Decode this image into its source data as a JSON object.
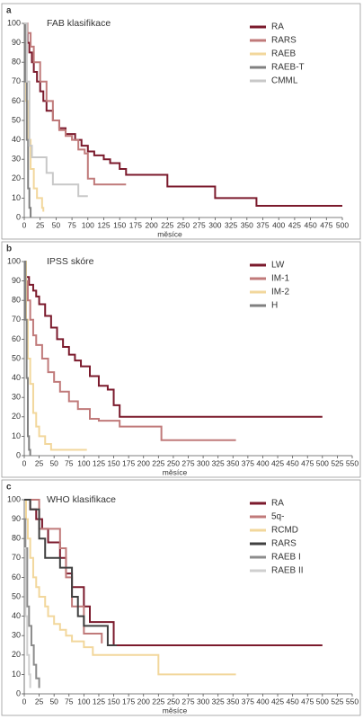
{
  "chart_data": [
    {
      "type": "line",
      "panel": "a",
      "title": "FAB klasifikace",
      "x_label": "měsíce",
      "step": true,
      "xlim": [
        0,
        500
      ],
      "ylim": [
        0,
        100
      ],
      "xticks": [
        0,
        25,
        50,
        75,
        100,
        125,
        150,
        175,
        200,
        225,
        250,
        275,
        300,
        325,
        350,
        375,
        400,
        425,
        450,
        475,
        500
      ],
      "yticks": [
        0,
        10,
        20,
        30,
        40,
        50,
        60,
        70,
        80,
        90,
        100
      ],
      "series": [
        {
          "name": "RA",
          "color": "#7b1a2c",
          "x": [
            0,
            3,
            5,
            8,
            12,
            15,
            20,
            25,
            30,
            35,
            45,
            55,
            65,
            80,
            90,
            100,
            110,
            125,
            135,
            150,
            160,
            225,
            300,
            365,
            500
          ],
          "values": [
            100,
            95,
            90,
            85,
            80,
            75,
            70,
            65,
            60,
            55,
            50,
            46,
            43,
            40,
            37,
            34,
            32,
            30,
            28,
            25,
            22,
            16,
            10,
            6,
            6
          ]
        },
        {
          "name": "RARS",
          "color": "#c07a7a",
          "x": [
            0,
            5,
            10,
            15,
            25,
            35,
            45,
            55,
            65,
            75,
            85,
            95,
            100,
            110,
            160
          ],
          "values": [
            100,
            95,
            88,
            80,
            70,
            60,
            50,
            45,
            42,
            40,
            35,
            33,
            20,
            17,
            17
          ]
        },
        {
          "name": "RAEB",
          "color": "#f2d79c",
          "x": [
            0,
            3,
            6,
            10,
            15,
            20,
            28,
            30
          ],
          "values": [
            100,
            60,
            40,
            25,
            15,
            10,
            5,
            3
          ]
        },
        {
          "name": "RAEB-T",
          "color": "#808080",
          "x": [
            0,
            2,
            4,
            6,
            8,
            10
          ],
          "values": [
            100,
            70,
            40,
            15,
            5,
            0
          ]
        },
        {
          "name": "CMML",
          "color": "#c8c8c8",
          "x": [
            0,
            4,
            8,
            12,
            35,
            45,
            75,
            85,
            100
          ],
          "values": [
            100,
            70,
            37,
            31,
            23,
            17,
            17,
            11,
            11
          ]
        }
      ]
    },
    {
      "type": "line",
      "panel": "b",
      "title": "IPSS skóre",
      "x_label": "měsíce",
      "step": true,
      "xlim": [
        0,
        550
      ],
      "ylim": [
        0,
        100
      ],
      "xticks": [
        0,
        25,
        50,
        75,
        100,
        125,
        150,
        175,
        200,
        225,
        250,
        275,
        300,
        325,
        350,
        375,
        400,
        425,
        450,
        475,
        500,
        525,
        550
      ],
      "yticks": [
        0,
        10,
        20,
        30,
        40,
        50,
        60,
        70,
        80,
        90,
        100
      ],
      "series": [
        {
          "name": "LW",
          "color": "#7b1a2c",
          "x": [
            0,
            3,
            8,
            15,
            20,
            25,
            35,
            45,
            55,
            65,
            75,
            85,
            95,
            110,
            125,
            140,
            150,
            160,
            500
          ],
          "values": [
            100,
            92,
            88,
            85,
            82,
            78,
            72,
            66,
            60,
            56,
            52,
            49,
            46,
            41,
            36,
            34,
            26,
            20,
            20
          ]
        },
        {
          "name": "IM-1",
          "color": "#c07a7a",
          "x": [
            0,
            3,
            6,
            10,
            15,
            20,
            30,
            40,
            50,
            60,
            75,
            90,
            110,
            125,
            160,
            230,
            355
          ],
          "values": [
            100,
            90,
            80,
            70,
            62,
            57,
            50,
            43,
            38,
            33,
            28,
            24,
            19,
            18,
            15,
            8,
            8
          ]
        },
        {
          "name": "IM-2",
          "color": "#f2d79c",
          "x": [
            0,
            3,
            6,
            10,
            15,
            20,
            25,
            35,
            45,
            105
          ],
          "values": [
            100,
            70,
            50,
            37,
            22,
            15,
            10,
            6,
            3,
            3
          ]
        },
        {
          "name": "H",
          "color": "#808080",
          "x": [
            0,
            2,
            4,
            6,
            8,
            10
          ],
          "values": [
            100,
            70,
            40,
            10,
            3,
            0
          ]
        }
      ]
    },
    {
      "type": "line",
      "panel": "c",
      "title": "WHO klasifikace",
      "x_label": "měsíce",
      "step": true,
      "xlim": [
        0,
        550
      ],
      "ylim": [
        0,
        100
      ],
      "xticks": [
        0,
        25,
        50,
        75,
        100,
        125,
        150,
        175,
        200,
        225,
        250,
        275,
        300,
        325,
        350,
        375,
        400,
        425,
        450,
        475,
        500,
        525,
        550
      ],
      "yticks": [
        0,
        10,
        20,
        30,
        40,
        50,
        60,
        70,
        80,
        90,
        100
      ],
      "series": [
        {
          "name": "RA",
          "color": "#7b1a2c",
          "x": [
            0,
            10,
            20,
            30,
            40,
            60,
            70,
            80,
            100,
            110,
            150,
            500
          ],
          "values": [
            100,
            95,
            90,
            85,
            78,
            70,
            62,
            55,
            45,
            37,
            25,
            25
          ]
        },
        {
          "name": "5q-",
          "color": "#c07a7a",
          "x": [
            0,
            15,
            25,
            50,
            60,
            70,
            80,
            100,
            125,
            130
          ],
          "values": [
            100,
            100,
            85,
            85,
            75,
            60,
            45,
            31,
            31,
            26
          ]
        },
        {
          "name": "RCMD",
          "color": "#f2d79c",
          "x": [
            0,
            3,
            6,
            10,
            15,
            20,
            25,
            35,
            40,
            50,
            60,
            70,
            80,
            100,
            115,
            225,
            355
          ],
          "values": [
            100,
            90,
            80,
            70,
            60,
            55,
            50,
            45,
            40,
            36,
            33,
            30,
            27,
            24,
            20,
            10,
            10
          ]
        },
        {
          "name": "RARS",
          "color": "#404040",
          "x": [
            0,
            10,
            25,
            35,
            60,
            80,
            90,
            100,
            140,
            155
          ],
          "values": [
            100,
            95,
            80,
            70,
            65,
            50,
            40,
            35,
            25,
            25
          ]
        },
        {
          "name": "RAEB I",
          "color": "#8c8c8c",
          "x": [
            0,
            2,
            5,
            8,
            12,
            16,
            20,
            25
          ],
          "values": [
            90,
            75,
            45,
            35,
            25,
            15,
            8,
            3
          ]
        },
        {
          "name": "RAEB II",
          "color": "#cfcfcf",
          "x": [
            0,
            2,
            5,
            8,
            10
          ],
          "values": [
            75,
            40,
            20,
            10,
            3
          ]
        }
      ]
    }
  ]
}
